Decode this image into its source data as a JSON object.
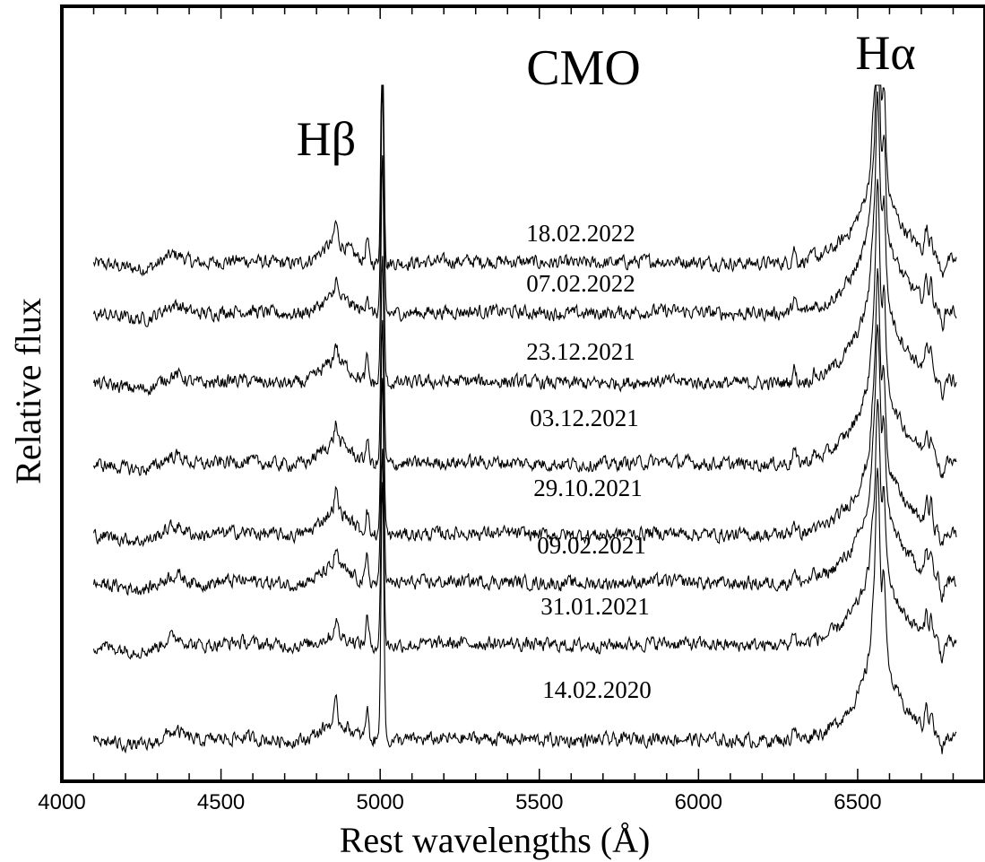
{
  "chart_data": {
    "type": "line",
    "title": "CMO",
    "xlabel": "Rest wavelengths (Å)",
    "ylabel": "Relative flux",
    "xlim": [
      4000,
      6900
    ],
    "x_ticks": [
      "4000",
      "4500",
      "5000",
      "5500",
      "6000",
      "6500"
    ],
    "y_ticks": [],
    "grid": false,
    "annotations": [
      {
        "label": "Hβ",
        "x": 4861
      },
      {
        "label": "Hα",
        "x": 6563
      }
    ],
    "series": [
      {
        "name": "18.02.2022",
        "baseline": 0.0,
        "continuum_slope": 0.0,
        "hbeta_broad": 0.5,
        "hbeta_narrow": 0.5,
        "oiii_4959": 0.55,
        "oiii_5007": 1.9,
        "halpha_broad": 1.6,
        "halpha_narrow": 1.9,
        "nii_6583": 1.2,
        "sii": 0.5
      },
      {
        "name": "07.02.2022",
        "baseline": 0.0,
        "continuum_slope": 0.0,
        "hbeta_broad": 0.4,
        "hbeta_narrow": 0.45,
        "oiii_4959": 0.5,
        "oiii_5007": 1.7,
        "halpha_broad": 1.7,
        "halpha_narrow": 1.8,
        "nii_6583": 1.1,
        "sii": 0.5
      },
      {
        "name": "23.12.2021",
        "baseline": 0.0,
        "continuum_slope": 0.0,
        "hbeta_broad": 0.55,
        "hbeta_narrow": 0.45,
        "oiii_4959": 0.55,
        "oiii_5007": 1.7,
        "halpha_broad": 1.8,
        "halpha_narrow": 1.7,
        "nii_6583": 1.1,
        "sii": 0.5
      },
      {
        "name": "03.12.2021",
        "baseline": 0.0,
        "continuum_slope": 0.0,
        "hbeta_broad": 0.55,
        "hbeta_narrow": 0.45,
        "oiii_4959": 0.6,
        "oiii_5007": 1.6,
        "halpha_broad": 1.7,
        "halpha_narrow": 1.7,
        "nii_6583": 1.0,
        "sii": 0.5
      },
      {
        "name": "29.10.2021",
        "baseline": 0.0,
        "continuum_slope": 0.0,
        "hbeta_broad": 0.6,
        "hbeta_narrow": 0.5,
        "oiii_4959": 0.6,
        "oiii_5007": 1.6,
        "halpha_broad": 1.6,
        "halpha_narrow": 1.6,
        "nii_6583": 1.0,
        "sii": 0.5
      },
      {
        "name": "09.02.2021",
        "baseline": 0.0,
        "continuum_slope": 0.0,
        "hbeta_broad": 0.4,
        "hbeta_narrow": 0.45,
        "oiii_4959": 0.6,
        "oiii_5007": 1.6,
        "halpha_broad": 1.6,
        "halpha_narrow": 1.6,
        "nii_6583": 1.0,
        "sii": 0.45
      },
      {
        "name": "31.01.2021",
        "baseline": 0.0,
        "continuum_slope": 0.0,
        "hbeta_broad": 0.25,
        "hbeta_narrow": 0.4,
        "oiii_4959": 0.65,
        "oiii_5007": 1.5,
        "halpha_broad": 1.5,
        "halpha_narrow": 1.5,
        "nii_6583": 0.95,
        "sii": 0.45
      },
      {
        "name": "14.02.2020",
        "baseline": 0.0,
        "continuum_slope": 0.0,
        "hbeta_broad": 0.45,
        "hbeta_narrow": 0.45,
        "oiii_4959": 0.75,
        "oiii_5007": 2.0,
        "halpha_broad": 1.6,
        "halpha_narrow": 1.7,
        "nii_6583": 1.1,
        "sii": 0.5
      }
    ]
  }
}
